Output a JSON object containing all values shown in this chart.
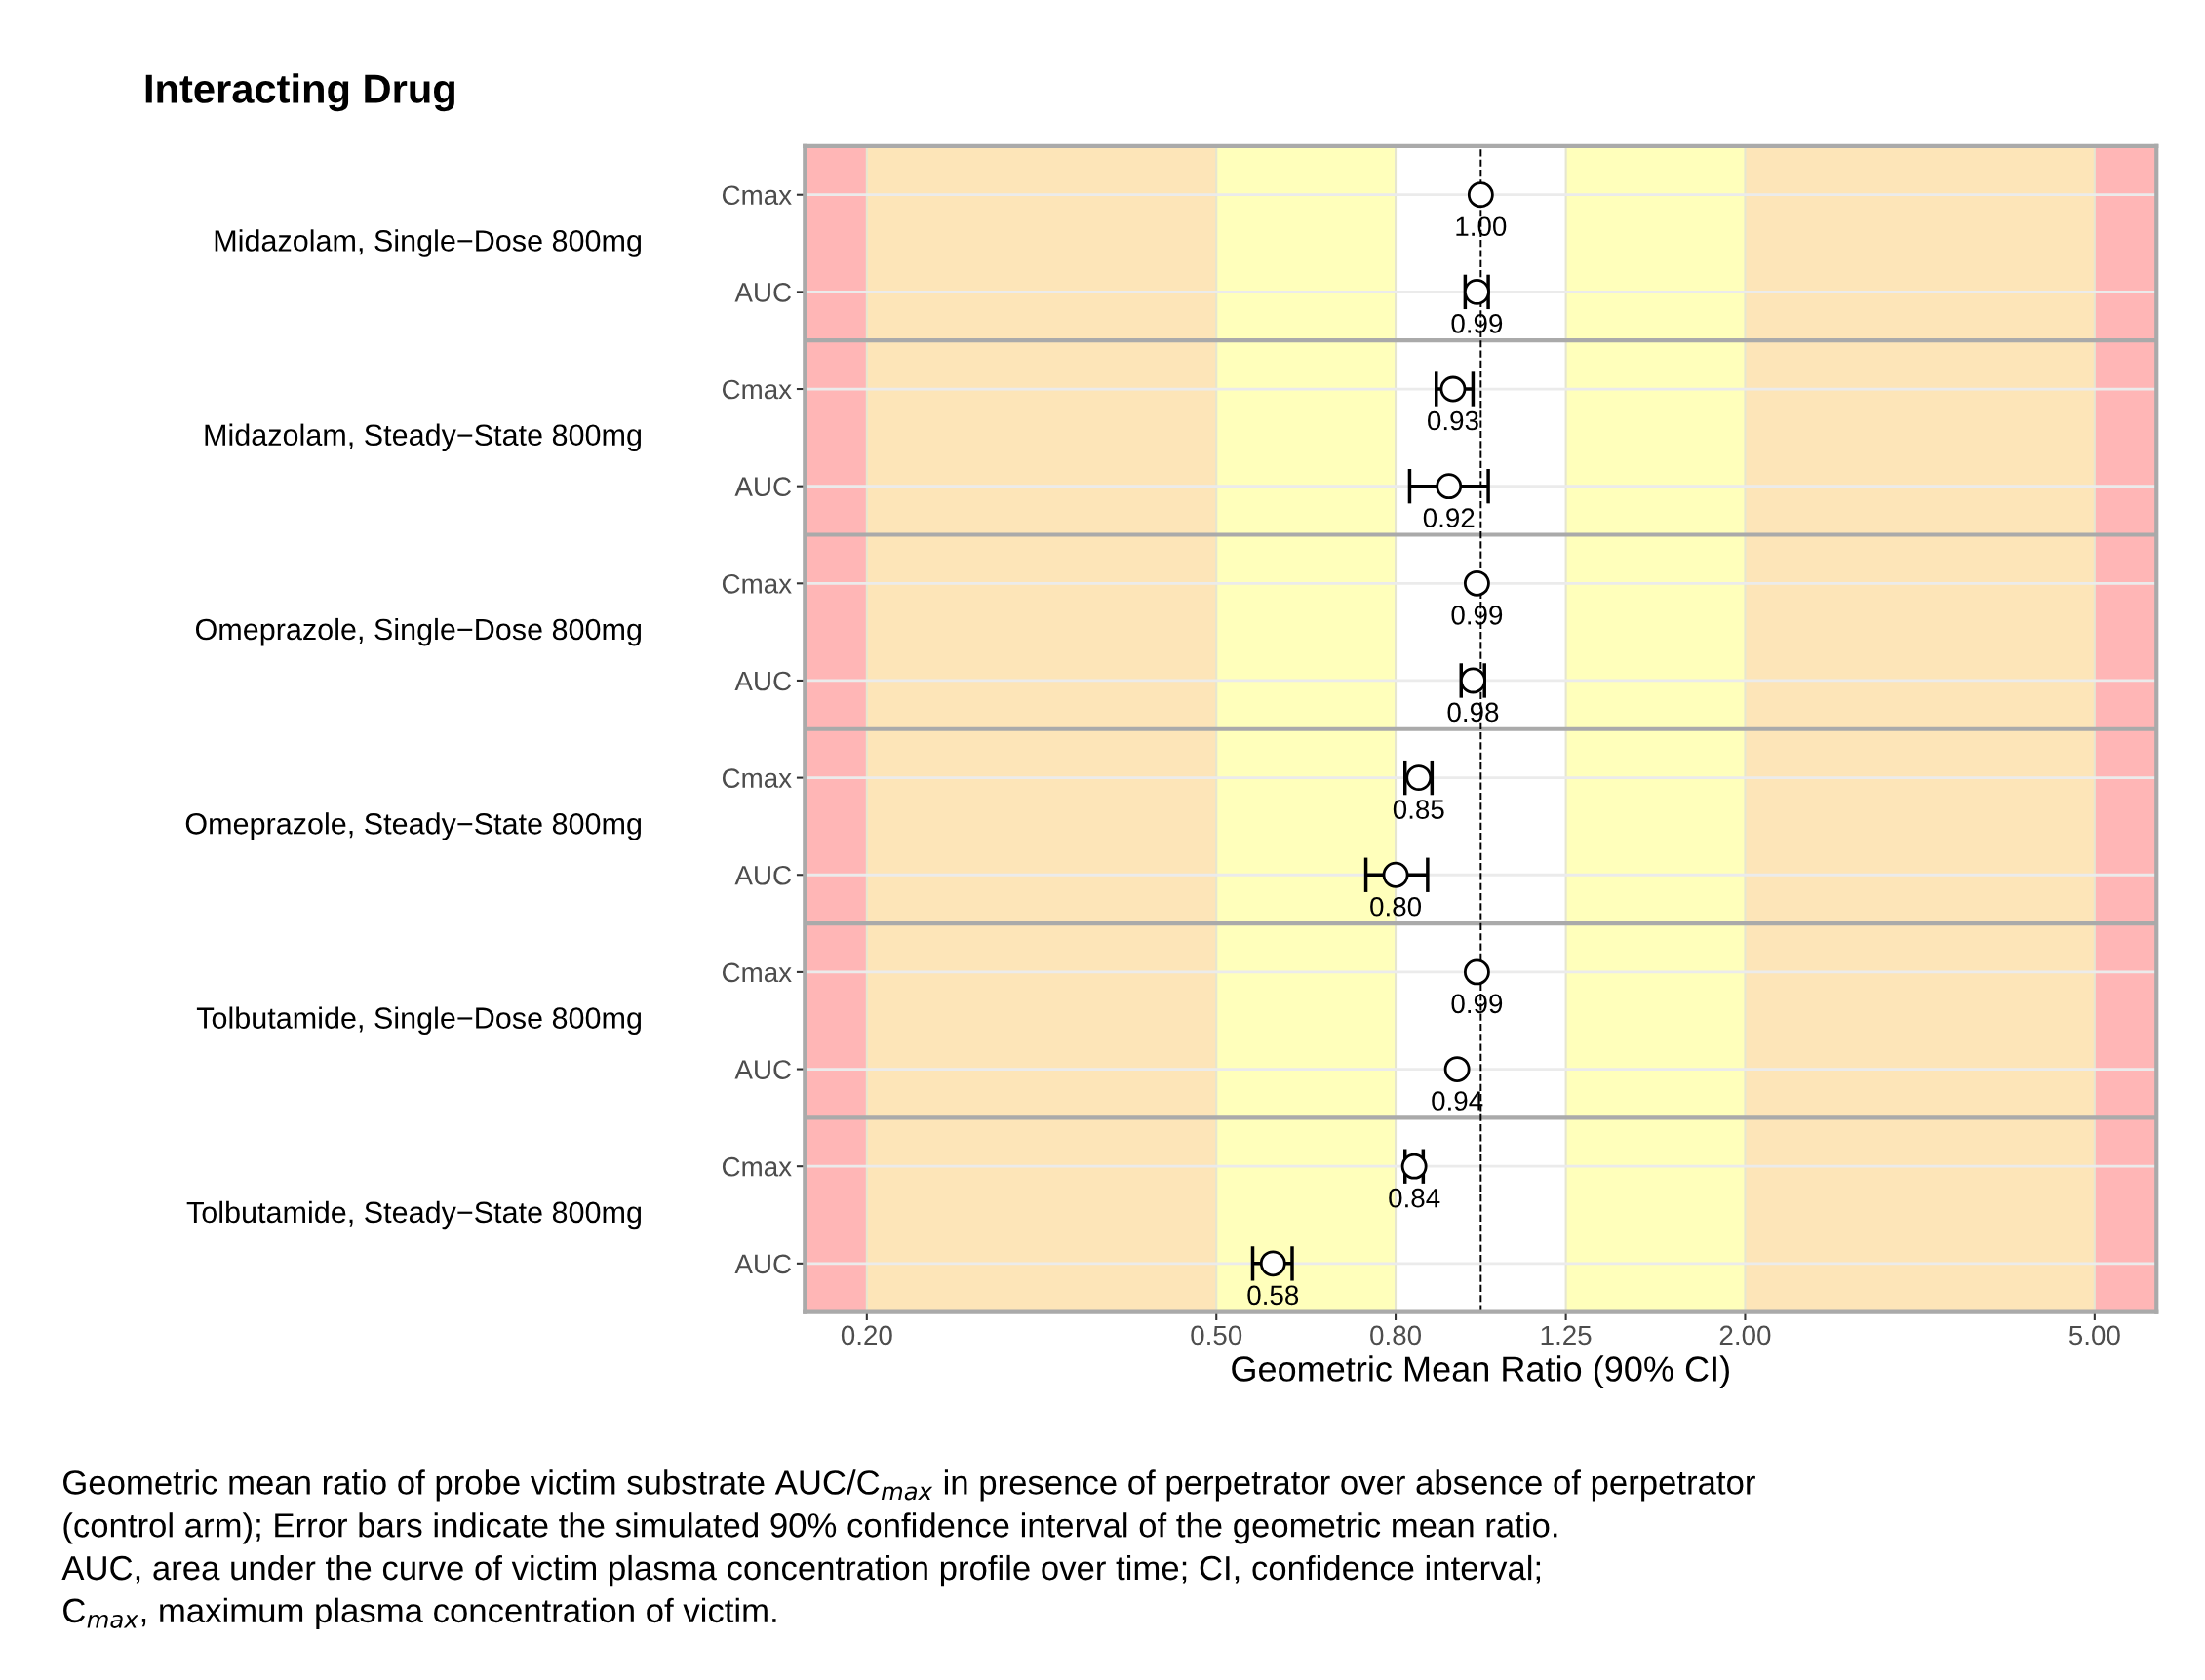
{
  "chart_data": {
    "type": "scatter",
    "orientation": "horizontal",
    "xlabel": "Geometric Mean Ratio (90% CI)",
    "categories": [
      "Cmax",
      "AUC",
      "Cmax",
      "AUC",
      "Cmax",
      "AUC",
      "Cmax",
      "AUC",
      "Cmax",
      "AUC",
      "Cmax",
      "AUC"
    ],
    "series": [
      {
        "color": "#000000",
        "values": [
          1.0,
          0.99,
          0.93,
          0.92,
          0.99,
          0.98,
          0.85,
          0.8,
          0.99,
          0.94,
          0.84,
          0.58
        ],
        "errors": [
          null,
          [
            0.96,
            1.02
          ],
          [
            0.89,
            0.98
          ],
          [
            0.83,
            1.02
          ],
          null,
          [
            0.95,
            1.01
          ],
          [
            0.82,
            0.88
          ],
          [
            0.74,
            0.87
          ],
          null,
          null,
          [
            0.82,
            0.86
          ],
          [
            0.55,
            0.61
          ]
        ],
        "value_labels": [
          "1.00",
          "0.99",
          "0.93",
          "0.92",
          "0.99",
          "0.98",
          "0.85",
          "0.80",
          "0.99",
          "0.94",
          "0.84",
          "0.58"
        ]
      }
    ],
    "marker": "circle",
    "log": "x",
    "grid": true,
    "xlim": [
      0.17,
      5.88
    ],
    "xticks": [
      {
        "value": 0.2,
        "label": "0.20"
      },
      {
        "value": 0.5,
        "label": "0.50"
      },
      {
        "value": 0.8,
        "label": "0.80"
      },
      {
        "value": 1.25,
        "label": "1.25"
      },
      {
        "value": 2,
        "label": "2.00"
      },
      {
        "value": 5,
        "label": "5.00"
      }
    ],
    "bands": [
      {
        "axis": "x",
        "from": 0.17,
        "to": 0.2,
        "color": "#ffb6b6"
      },
      {
        "axis": "x",
        "from": 0.2,
        "to": 0.5,
        "color": "#fde5b8"
      },
      {
        "axis": "x",
        "from": 0.5,
        "to": 0.8,
        "color": "#ffffbb"
      },
      {
        "axis": "x",
        "from": 1.25,
        "to": 2,
        "color": "#ffffbb"
      },
      {
        "axis": "x",
        "from": 2,
        "to": 5,
        "color": "#fde5b8"
      },
      {
        "axis": "x",
        "from": 5,
        "to": 5.88,
        "color": "#ffb6b6"
      }
    ],
    "ref_lines": [
      {
        "axis": "x",
        "value": 1,
        "line_style": "dashed",
        "color": "#000000"
      }
    ],
    "annotations": [
      "Interacting Drug",
      "Midazolam, Single−Dose 800mg",
      "Midazolam, Steady−State 800mg",
      "Omeprazole, Single−Dose 800mg",
      "Omeprazole, Steady−State 800mg",
      "Tolbutamide, Single−Dose 800mg",
      "Tolbutamide, Steady−State 800mg",
      "Geometric mean ratio of probe victim substrate AUC/C$_{max}$ in presence of perpetrator over absence of perpetrator\n(control arm); Error bars indicate the simulated 90% confidence interval of the geometric mean ratio.\nAUC, area under the curve of victim plasma concentration profile over time; CI, confidence interval;\nC$_{max}$, maximum plasma concentration of victim."
    ]
  }
}
